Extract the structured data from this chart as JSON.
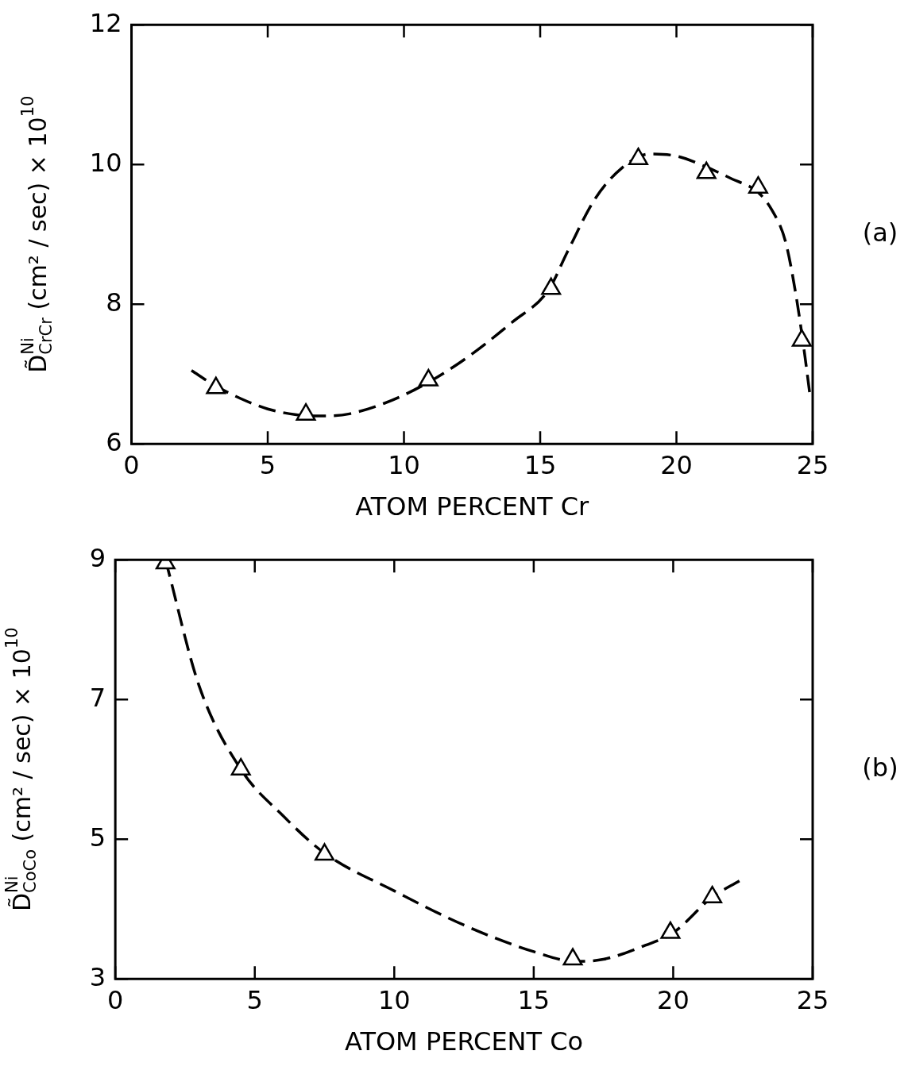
{
  "chart_data": [
    {
      "type": "scatter",
      "xlabel": "ATOM PERCENT Cr",
      "ylabel": "D̃$^{Ni}$$_{CrCr}$ (cm² / sec) × 10$^{10}$",
      "annotations": [
        "(a)"
      ],
      "xlim": [
        0,
        25
      ],
      "ylim": [
        6,
        12
      ],
      "xticks": [
        0,
        5,
        10,
        15,
        20,
        25
      ],
      "yticks": [
        6,
        8,
        10,
        12
      ],
      "grid": false,
      "legend": false,
      "series": [
        {
          "type": "line",
          "line_style": "dashed",
          "marker": "none",
          "color": "#000000",
          "x": [
            2.2,
            3,
            4,
            5,
            6,
            7,
            8,
            10,
            12,
            14,
            15.3,
            16,
            17,
            18,
            19,
            20,
            21,
            22,
            23,
            23.5,
            24,
            24.4,
            24.7,
            24.9
          ],
          "values": [
            7.05,
            6.85,
            6.65,
            6.5,
            6.42,
            6.4,
            6.43,
            6.7,
            7.15,
            7.75,
            8.2,
            8.75,
            9.5,
            9.95,
            10.15,
            10.12,
            9.98,
            9.8,
            9.6,
            9.35,
            8.9,
            8.1,
            7.3,
            6.7
          ]
        },
        {
          "type": "scatter",
          "marker": "triangle",
          "color": "#000000",
          "x": [
            3.1,
            6.4,
            10.9,
            15.4,
            18.6,
            21.1,
            23.0,
            24.6
          ],
          "values": [
            6.8,
            6.42,
            6.91,
            8.22,
            10.08,
            9.88,
            9.67,
            7.48
          ]
        }
      ]
    },
    {
      "type": "scatter",
      "xlabel": "ATOM PERCENT Co",
      "ylabel": "D̃$^{Ni}$$_{CoCo}$ (cm² / sec) × 10$^{10}$",
      "annotations": [
        "(b)"
      ],
      "xlim": [
        0,
        25
      ],
      "ylim": [
        3,
        9
      ],
      "xticks": [
        0,
        5,
        10,
        15,
        20,
        25
      ],
      "yticks": [
        3,
        5,
        7,
        9
      ],
      "grid": false,
      "legend": false,
      "series": [
        {
          "type": "line",
          "line_style": "dashed",
          "marker": "none",
          "color": "#000000",
          "x": [
            1.8,
            3,
            4.5,
            6,
            7.5,
            10,
            12.5,
            15,
            16.5,
            17.5,
            19,
            20,
            21.4,
            22.4
          ],
          "values": [
            9.0,
            7.2,
            6.0,
            5.34,
            4.8,
            4.26,
            3.77,
            3.39,
            3.25,
            3.28,
            3.48,
            3.66,
            4.17,
            4.41
          ]
        },
        {
          "type": "scatter",
          "marker": "triangle",
          "color": "#000000",
          "x": [
            1.8,
            4.5,
            7.5,
            16.4,
            19.9,
            21.4
          ],
          "values": [
            8.95,
            6.0,
            4.78,
            3.28,
            3.66,
            4.17
          ]
        }
      ]
    }
  ]
}
